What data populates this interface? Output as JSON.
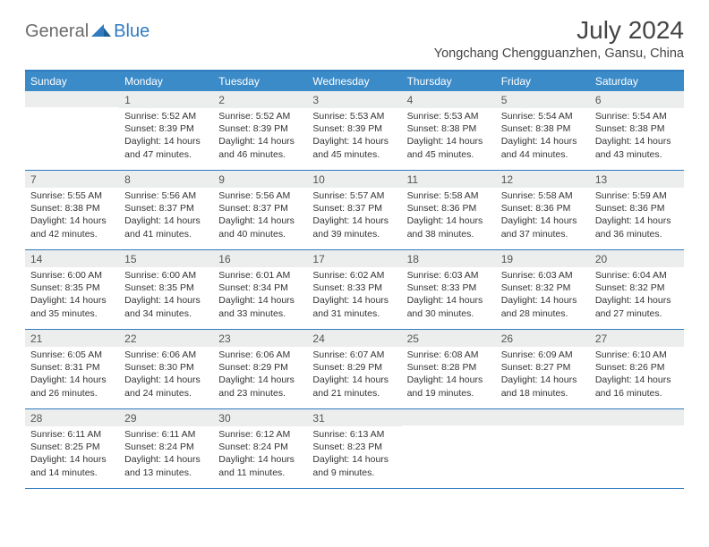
{
  "brand": {
    "part1": "General",
    "part2": "Blue"
  },
  "title": "July 2024",
  "location": "Yongchang Chengguanzhen, Gansu, China",
  "colors": {
    "accent": "#3b8bc9",
    "accent_border": "#2f7bbf",
    "header_gray": "#eceded",
    "text": "#333333",
    "title_text": "#444444",
    "logo_gray": "#6b6b6b"
  },
  "day_names": [
    "Sunday",
    "Monday",
    "Tuesday",
    "Wednesday",
    "Thursday",
    "Friday",
    "Saturday"
  ],
  "first_weekday_index": 1,
  "days": [
    {
      "n": 1,
      "sunrise": "5:52 AM",
      "sunset": "8:39 PM",
      "daylight": "14 hours and 47 minutes."
    },
    {
      "n": 2,
      "sunrise": "5:52 AM",
      "sunset": "8:39 PM",
      "daylight": "14 hours and 46 minutes."
    },
    {
      "n": 3,
      "sunrise": "5:53 AM",
      "sunset": "8:39 PM",
      "daylight": "14 hours and 45 minutes."
    },
    {
      "n": 4,
      "sunrise": "5:53 AM",
      "sunset": "8:38 PM",
      "daylight": "14 hours and 45 minutes."
    },
    {
      "n": 5,
      "sunrise": "5:54 AM",
      "sunset": "8:38 PM",
      "daylight": "14 hours and 44 minutes."
    },
    {
      "n": 6,
      "sunrise": "5:54 AM",
      "sunset": "8:38 PM",
      "daylight": "14 hours and 43 minutes."
    },
    {
      "n": 7,
      "sunrise": "5:55 AM",
      "sunset": "8:38 PM",
      "daylight": "14 hours and 42 minutes."
    },
    {
      "n": 8,
      "sunrise": "5:56 AM",
      "sunset": "8:37 PM",
      "daylight": "14 hours and 41 minutes."
    },
    {
      "n": 9,
      "sunrise": "5:56 AM",
      "sunset": "8:37 PM",
      "daylight": "14 hours and 40 minutes."
    },
    {
      "n": 10,
      "sunrise": "5:57 AM",
      "sunset": "8:37 PM",
      "daylight": "14 hours and 39 minutes."
    },
    {
      "n": 11,
      "sunrise": "5:58 AM",
      "sunset": "8:36 PM",
      "daylight": "14 hours and 38 minutes."
    },
    {
      "n": 12,
      "sunrise": "5:58 AM",
      "sunset": "8:36 PM",
      "daylight": "14 hours and 37 minutes."
    },
    {
      "n": 13,
      "sunrise": "5:59 AM",
      "sunset": "8:36 PM",
      "daylight": "14 hours and 36 minutes."
    },
    {
      "n": 14,
      "sunrise": "6:00 AM",
      "sunset": "8:35 PM",
      "daylight": "14 hours and 35 minutes."
    },
    {
      "n": 15,
      "sunrise": "6:00 AM",
      "sunset": "8:35 PM",
      "daylight": "14 hours and 34 minutes."
    },
    {
      "n": 16,
      "sunrise": "6:01 AM",
      "sunset": "8:34 PM",
      "daylight": "14 hours and 33 minutes."
    },
    {
      "n": 17,
      "sunrise": "6:02 AM",
      "sunset": "8:33 PM",
      "daylight": "14 hours and 31 minutes."
    },
    {
      "n": 18,
      "sunrise": "6:03 AM",
      "sunset": "8:33 PM",
      "daylight": "14 hours and 30 minutes."
    },
    {
      "n": 19,
      "sunrise": "6:03 AM",
      "sunset": "8:32 PM",
      "daylight": "14 hours and 28 minutes."
    },
    {
      "n": 20,
      "sunrise": "6:04 AM",
      "sunset": "8:32 PM",
      "daylight": "14 hours and 27 minutes."
    },
    {
      "n": 21,
      "sunrise": "6:05 AM",
      "sunset": "8:31 PM",
      "daylight": "14 hours and 26 minutes."
    },
    {
      "n": 22,
      "sunrise": "6:06 AM",
      "sunset": "8:30 PM",
      "daylight": "14 hours and 24 minutes."
    },
    {
      "n": 23,
      "sunrise": "6:06 AM",
      "sunset": "8:29 PM",
      "daylight": "14 hours and 23 minutes."
    },
    {
      "n": 24,
      "sunrise": "6:07 AM",
      "sunset": "8:29 PM",
      "daylight": "14 hours and 21 minutes."
    },
    {
      "n": 25,
      "sunrise": "6:08 AM",
      "sunset": "8:28 PM",
      "daylight": "14 hours and 19 minutes."
    },
    {
      "n": 26,
      "sunrise": "6:09 AM",
      "sunset": "8:27 PM",
      "daylight": "14 hours and 18 minutes."
    },
    {
      "n": 27,
      "sunrise": "6:10 AM",
      "sunset": "8:26 PM",
      "daylight": "14 hours and 16 minutes."
    },
    {
      "n": 28,
      "sunrise": "6:11 AM",
      "sunset": "8:25 PM",
      "daylight": "14 hours and 14 minutes."
    },
    {
      "n": 29,
      "sunrise": "6:11 AM",
      "sunset": "8:24 PM",
      "daylight": "14 hours and 13 minutes."
    },
    {
      "n": 30,
      "sunrise": "6:12 AM",
      "sunset": "8:24 PM",
      "daylight": "14 hours and 11 minutes."
    },
    {
      "n": 31,
      "sunrise": "6:13 AM",
      "sunset": "8:23 PM",
      "daylight": "14 hours and 9 minutes."
    }
  ],
  "labels": {
    "sunrise": "Sunrise:",
    "sunset": "Sunset:",
    "daylight": "Daylight:"
  }
}
